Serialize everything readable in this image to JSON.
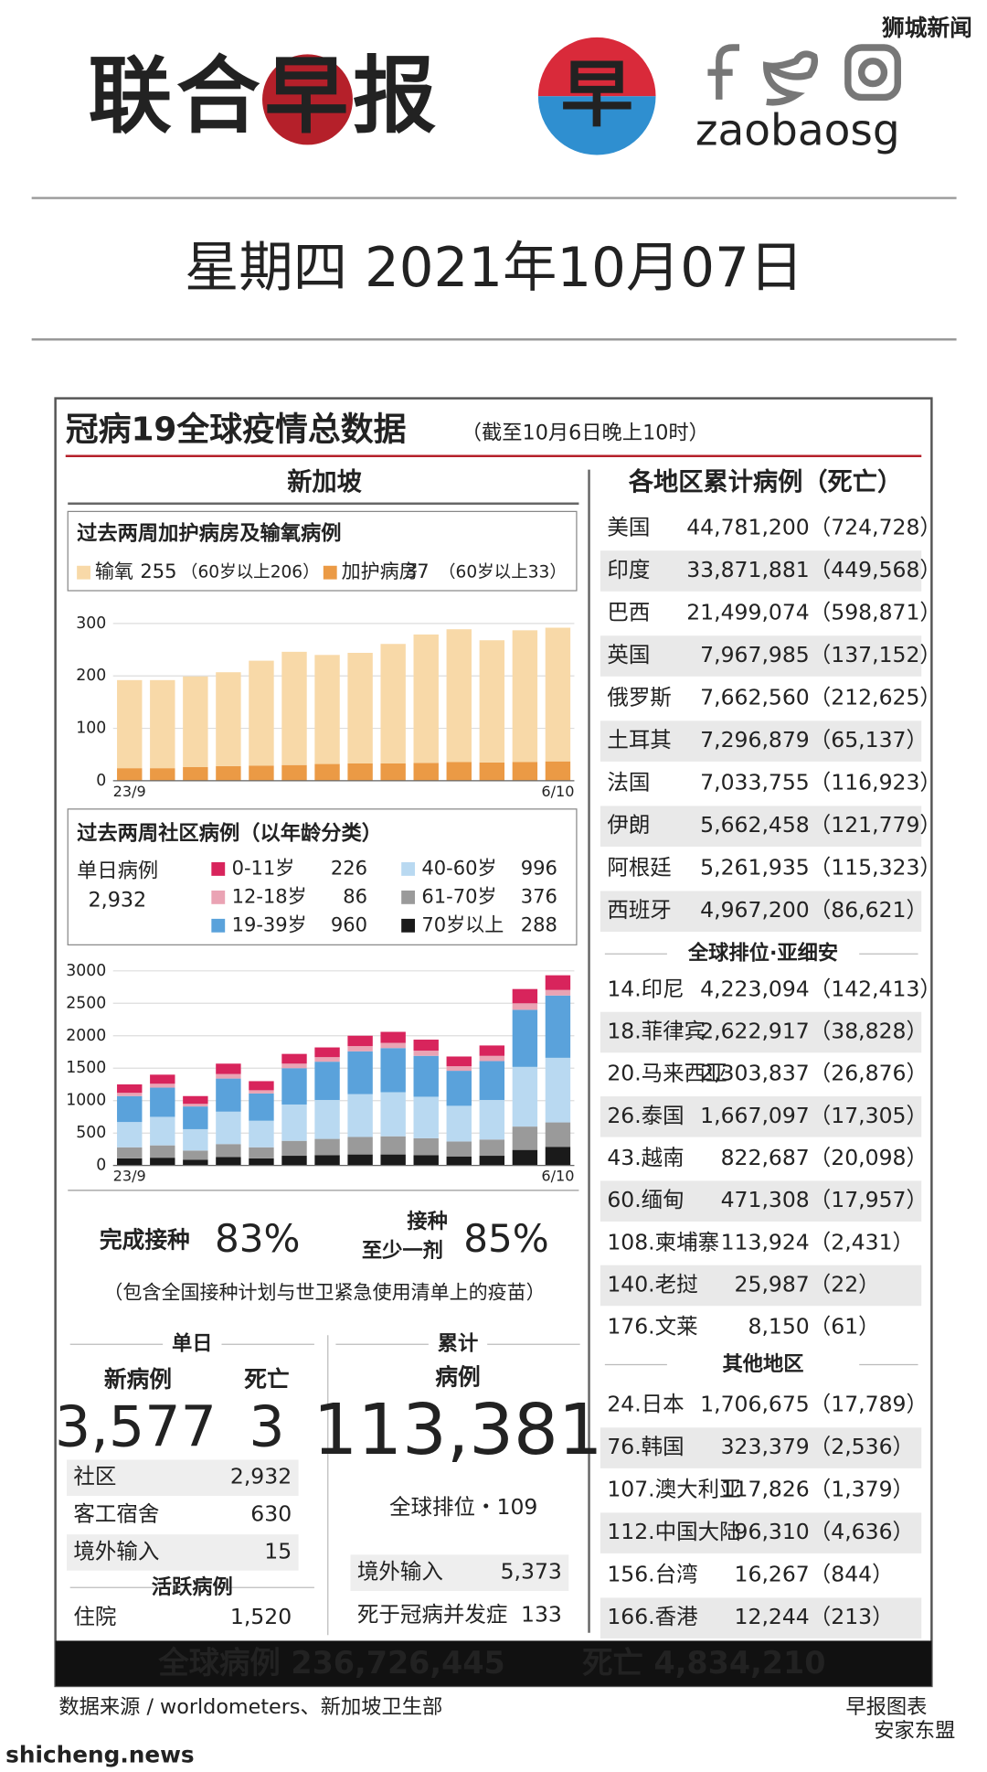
{
  "header": {
    "logo_text": "联合早报",
    "logo_mark": "早",
    "handle": "zaobaosg",
    "date": "星期四  2021年10月07日"
  },
  "infographic": {
    "title": "冠病19全球疫情总数据",
    "subtitle": "（截至10月6日晚上10时）",
    "left_heading": "新加坡",
    "right_heading": "各地区累计病例（死亡）"
  },
  "chart_data": [
    {
      "type": "bar",
      "stacked": true,
      "title": "过去两周加护病房及输氧病例",
      "categories": [
        "23/9",
        null,
        null,
        null,
        null,
        null,
        null,
        null,
        null,
        null,
        null,
        null,
        null,
        "6/10"
      ],
      "series": [
        {
          "name": "加护病房",
          "color": "#eb9a45",
          "values": [
            24,
            24,
            26,
            28,
            29,
            30,
            32,
            33,
            33,
            34,
            36,
            35,
            36,
            37
          ],
          "legend_note": "（60岁以上33）"
        },
        {
          "name": "输氧",
          "color": "#f8d9a8",
          "values": [
            168,
            168,
            173,
            179,
            200,
            216,
            208,
            211,
            228,
            245,
            253,
            233,
            251,
            255
          ],
          "legend_note": "（60岁以上206）"
        }
      ],
      "ylim": [
        0,
        300
      ],
      "yticks": [
        0,
        100,
        200,
        300
      ],
      "grid": true
    },
    {
      "type": "bar",
      "stacked": true,
      "title": "过去两周社区病例（以年龄分类）",
      "annotation": "单日病例",
      "total_label": "2,932",
      "categories": [
        "23/9",
        null,
        null,
        null,
        null,
        null,
        null,
        null,
        null,
        null,
        null,
        null,
        null,
        "6/10"
      ],
      "series": [
        {
          "name": "70岁以上",
          "color": "#1a1a1a",
          "values": [
            110,
            120,
            90,
            130,
            110,
            150,
            160,
            170,
            170,
            160,
            140,
            150,
            240,
            288
          ]
        },
        {
          "name": "61-70岁",
          "color": "#9a9a9a",
          "values": [
            170,
            190,
            140,
            200,
            170,
            230,
            250,
            270,
            280,
            260,
            230,
            250,
            360,
            376
          ]
        },
        {
          "name": "40-60岁",
          "color": "#b9d9f1",
          "values": [
            390,
            440,
            330,
            500,
            410,
            560,
            600,
            660,
            680,
            640,
            550,
            610,
            920,
            996
          ]
        },
        {
          "name": "19-39岁",
          "color": "#5aa2db",
          "values": [
            400,
            450,
            350,
            510,
            420,
            560,
            590,
            660,
            680,
            630,
            540,
            600,
            880,
            960
          ]
        },
        {
          "name": "12-18岁",
          "color": "#eaa3b4",
          "values": [
            50,
            60,
            40,
            70,
            50,
            70,
            70,
            80,
            80,
            80,
            70,
            80,
            100,
            86
          ]
        },
        {
          "name": "0-11岁",
          "color": "#d8245c",
          "values": [
            130,
            140,
            120,
            160,
            140,
            150,
            150,
            160,
            170,
            170,
            150,
            160,
            220,
            226
          ]
        }
      ],
      "ylim": [
        0,
        3000
      ],
      "yticks": [
        0,
        500,
        1000,
        1500,
        2000,
        2500,
        3000
      ],
      "grid": true
    }
  ],
  "vaccination": {
    "full_label": "完成接种",
    "full_value": "83%",
    "partial_label_1": "接种",
    "partial_label_2": "至少一剂",
    "partial_value": "85%",
    "note": "（包含全国接种计划与世卫紧急使用清单上的疫苗）"
  },
  "daily": {
    "heading": "单日",
    "new_cases_label": "新病例",
    "new_cases": "3,577",
    "deaths_label": "死亡",
    "deaths": "3",
    "rows": [
      [
        "社区",
        "2,932"
      ],
      [
        "客工宿舍",
        "630"
      ],
      [
        "境外输入",
        "15"
      ]
    ],
    "active_heading": "活跃病例",
    "active_rows": [
      [
        "住院",
        "1,520"
      ]
    ]
  },
  "cumulative": {
    "heading": "累计",
    "cases_label": "病例",
    "cases": "113,381",
    "rank": "全球排位・109",
    "rows": [
      [
        "境外输入",
        "5,373"
      ],
      [
        "死于冠病并发症",
        "133"
      ]
    ]
  },
  "regions": {
    "top": [
      [
        "美国",
        "44,781,200",
        "（724,728）"
      ],
      [
        "印度",
        "33,871,881",
        "（449,568）"
      ],
      [
        "巴西",
        "21,499,074",
        "（598,871）"
      ],
      [
        "英国",
        "7,967,985",
        "（137,152）"
      ],
      [
        "俄罗斯",
        "7,662,560",
        "（212,625）"
      ],
      [
        "土耳其",
        "7,296,879",
        "（65,137）"
      ],
      [
        "法国",
        "7,033,755",
        "（116,923）"
      ],
      [
        "伊朗",
        "5,662,458",
        "（121,779）"
      ],
      [
        "阿根廷",
        "5,261,935",
        "（115,323）"
      ],
      [
        "西班牙",
        "4,967,200",
        "（86,621）"
      ]
    ],
    "asean_heading": "全球排位·亚细安",
    "asean": [
      [
        "14.印尼",
        "4,223,094",
        "（142,413）"
      ],
      [
        "18.菲律宾",
        "2,622,917",
        "（38,828）"
      ],
      [
        "20.马来西亚",
        "2,303,837",
        "（26,876）"
      ],
      [
        "26.泰国",
        "1,667,097",
        "（17,305）"
      ],
      [
        "43.越南",
        "822,687",
        "（20,098）"
      ],
      [
        "60.缅甸",
        "471,308",
        "（17,957）"
      ],
      [
        "108.柬埔寨",
        "113,924",
        "（2,431）"
      ],
      [
        "140.老挝",
        "25,987",
        "（22）"
      ],
      [
        "176.文莱",
        "8,150",
        "（61）"
      ]
    ],
    "others_heading": "其他地区",
    "others": [
      [
        "24.日本",
        "1,706,675",
        "（17,789）"
      ],
      [
        "76.韩国",
        "323,379",
        "（2,536）"
      ],
      [
        "107.澳大利亚",
        "117,826",
        "（1,379）"
      ],
      [
        "112.中国大陆",
        "96,310",
        "（4,636）"
      ],
      [
        "156.台湾",
        "16,267",
        "（844）"
      ],
      [
        "166.香港",
        "12,244",
        "（213）"
      ]
    ]
  },
  "footer": {
    "global_cases": "全球病例 236,726,445",
    "global_deaths": "死亡 4,834,210",
    "source": "数据来源 / worldometers、新加坡卫生部",
    "credit": "早报图表"
  },
  "watermarks": {
    "top": "狮城新闻",
    "bottom_left": "shicheng.news",
    "bottom_right": "安家东盟"
  }
}
